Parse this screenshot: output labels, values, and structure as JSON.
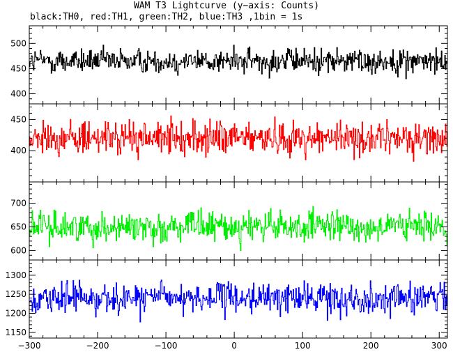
{
  "title": "WAM T3 Lightcurve (y−axis: Counts)",
  "subtitle": "black:TH0, red:TH1, green:TH2, blue:TH3 ,1bin = 1s",
  "chart_data": {
    "type": "line",
    "x_range": [
      -300,
      312
    ],
    "bin_seconds": 1,
    "x_ticks": [
      -300,
      -200,
      -100,
      0,
      100,
      200,
      300
    ],
    "x_tick_labels": [
      "−300",
      "−200",
      "−100",
      "0",
      "100",
      "200",
      "300"
    ],
    "grid": false,
    "panels": [
      {
        "id": "TH0",
        "color": "#000000",
        "ylim": [
          380,
          535
        ],
        "y_ticks": [
          400,
          450,
          500
        ],
        "y_tick_labels": [
          "400",
          "450",
          "500"
        ],
        "mean": 465,
        "spread": 22
      },
      {
        "id": "TH1",
        "color": "#ff0000",
        "ylim": [
          350,
          475
        ],
        "y_ticks": [
          400,
          450
        ],
        "y_tick_labels": [
          "400",
          "450"
        ],
        "mean": 420,
        "spread": 23
      },
      {
        "id": "TH2",
        "color": "#00ee00",
        "ylim": [
          580,
          745
        ],
        "y_ticks": [
          600,
          650,
          700
        ],
        "y_tick_labels": [
          "600",
          "650",
          "700"
        ],
        "mean": 650,
        "spread": 28
      },
      {
        "id": "TH3",
        "color": "#0000ff",
        "ylim": [
          1135,
          1340
        ],
        "y_ticks": [
          1150,
          1200,
          1250,
          1300
        ],
        "y_tick_labels": [
          "1150",
          "1200",
          "1250",
          "1300"
        ],
        "mean": 1240,
        "spread": 35
      }
    ]
  }
}
